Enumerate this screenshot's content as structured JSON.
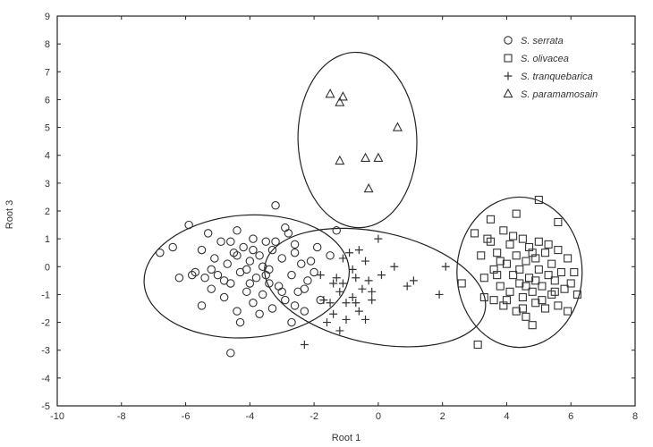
{
  "chart_data": {
    "type": "scatter",
    "xlabel": "Root 1",
    "ylabel": "Root 3",
    "xlim": [
      -10,
      8
    ],
    "ylim": [
      -5,
      9
    ],
    "xticks": [
      -10,
      -8,
      -6,
      -4,
      -2,
      0,
      2,
      4,
      6,
      8
    ],
    "yticks": [
      -5,
      -4,
      -3,
      -2,
      -1,
      0,
      1,
      2,
      3,
      4,
      5,
      6,
      7,
      8,
      9
    ],
    "grid": false,
    "legend_position": "top-right",
    "series": [
      {
        "name": "S. serrata",
        "marker": "circle",
        "points": [
          [
            -6.8,
            0.5
          ],
          [
            -6.4,
            0.7
          ],
          [
            -6.2,
            -0.4
          ],
          [
            -5.9,
            1.5
          ],
          [
            -5.7,
            -0.2
          ],
          [
            -5.5,
            0.6
          ],
          [
            -5.5,
            -1.4
          ],
          [
            -5.3,
            1.2
          ],
          [
            -5.2,
            -0.8
          ],
          [
            -5.1,
            0.3
          ],
          [
            -5.0,
            -0.3
          ],
          [
            -4.9,
            0.9
          ],
          [
            -4.8,
            -1.1
          ],
          [
            -4.7,
            0.1
          ],
          [
            -4.6,
            -0.6
          ],
          [
            -4.5,
            0.5
          ],
          [
            -4.4,
            -1.6
          ],
          [
            -4.4,
            1.3
          ],
          [
            -4.3,
            -0.2
          ],
          [
            -4.2,
            0.7
          ],
          [
            -4.1,
            -0.9
          ],
          [
            -4.0,
            0.2
          ],
          [
            -3.9,
            -1.3
          ],
          [
            -3.9,
            1.0
          ],
          [
            -3.8,
            -0.4
          ],
          [
            -3.7,
            0.4
          ],
          [
            -3.6,
            -1.0
          ],
          [
            -3.5,
            0.9
          ],
          [
            -3.4,
            -0.1
          ],
          [
            -3.3,
            -1.5
          ],
          [
            -3.3,
            0.6
          ],
          [
            -3.2,
            2.2
          ],
          [
            -3.1,
            -0.7
          ],
          [
            -3.0,
            0.3
          ],
          [
            -2.9,
            -1.2
          ],
          [
            -2.8,
            1.2
          ],
          [
            -2.7,
            -0.3
          ],
          [
            -2.7,
            -2.0
          ],
          [
            -2.6,
            0.8
          ],
          [
            -2.5,
            -0.9
          ],
          [
            -2.4,
            0.1
          ],
          [
            -2.3,
            -1.6
          ],
          [
            -2.2,
            -0.5
          ],
          [
            -1.9,
            0.7
          ],
          [
            -1.5,
            0.4
          ],
          [
            -4.6,
            -3.1
          ],
          [
            -4.3,
            -2.0
          ],
          [
            -3.7,
            -1.7
          ],
          [
            -5.2,
            -0.1
          ],
          [
            -4.0,
            -0.6
          ],
          [
            -3.6,
            0.0
          ],
          [
            -2.9,
            1.4
          ],
          [
            -2.0,
            -0.2
          ],
          [
            -2.6,
            -1.4
          ],
          [
            -1.8,
            -1.2
          ],
          [
            -1.3,
            1.3
          ],
          [
            -2.1,
            0.2
          ],
          [
            -3.0,
            -0.9
          ],
          [
            -4.4,
            0.4
          ],
          [
            -5.4,
            -0.4
          ],
          [
            -4.1,
            -0.1
          ],
          [
            -3.4,
            -0.6
          ],
          [
            -4.8,
            -0.5
          ],
          [
            -3.5,
            -0.3
          ],
          [
            -2.6,
            0.5
          ],
          [
            -3.9,
            0.6
          ],
          [
            -4.6,
            0.9
          ],
          [
            -3.2,
            0.9
          ],
          [
            -2.3,
            -0.8
          ],
          [
            -5.8,
            -0.3
          ]
        ]
      },
      {
        "name": "S. olivacea",
        "marker": "square",
        "points": [
          [
            3.1,
            -2.8
          ],
          [
            5.0,
            2.4
          ],
          [
            4.3,
            1.9
          ],
          [
            5.6,
            1.6
          ],
          [
            3.5,
            1.7
          ],
          [
            3.0,
            1.2
          ],
          [
            2.6,
            -0.6
          ],
          [
            3.2,
            0.4
          ],
          [
            3.3,
            -0.4
          ],
          [
            3.3,
            -1.1
          ],
          [
            3.5,
            0.9
          ],
          [
            3.6,
            -0.1
          ],
          [
            3.6,
            -1.2
          ],
          [
            3.7,
            0.5
          ],
          [
            3.8,
            -0.7
          ],
          [
            3.9,
            -1.4
          ],
          [
            3.9,
            1.3
          ],
          [
            4.0,
            0.1
          ],
          [
            4.1,
            -0.9
          ],
          [
            4.1,
            0.8
          ],
          [
            4.2,
            -0.3
          ],
          [
            4.3,
            -1.6
          ],
          [
            4.3,
            0.4
          ],
          [
            4.4,
            -0.6
          ],
          [
            4.5,
            1.0
          ],
          [
            4.5,
            -1.1
          ],
          [
            4.6,
            0.2
          ],
          [
            4.6,
            -1.8
          ],
          [
            4.7,
            -0.4
          ],
          [
            4.7,
            0.7
          ],
          [
            4.8,
            -2.1
          ],
          [
            4.8,
            -0.9
          ],
          [
            4.9,
            0.3
          ],
          [
            4.9,
            -1.3
          ],
          [
            5.0,
            -0.1
          ],
          [
            5.0,
            0.9
          ],
          [
            5.1,
            -0.7
          ],
          [
            5.2,
            0.5
          ],
          [
            5.2,
            -1.5
          ],
          [
            5.3,
            -0.3
          ],
          [
            5.4,
            0.1
          ],
          [
            5.4,
            -1.0
          ],
          [
            5.5,
            -0.5
          ],
          [
            5.6,
            0.6
          ],
          [
            5.6,
            -1.4
          ],
          [
            5.7,
            -0.2
          ],
          [
            5.8,
            -0.8
          ],
          [
            5.9,
            -1.6
          ],
          [
            5.9,
            0.3
          ],
          [
            6.0,
            -0.6
          ],
          [
            6.1,
            -0.2
          ],
          [
            6.2,
            -1.0
          ],
          [
            3.4,
            1.0
          ],
          [
            4.2,
            1.1
          ],
          [
            3.8,
            0.2
          ],
          [
            4.4,
            -0.1
          ],
          [
            4.0,
            -1.2
          ],
          [
            4.6,
            -0.7
          ],
          [
            5.3,
            0.8
          ],
          [
            5.1,
            -1.2
          ],
          [
            4.9,
            -0.5
          ],
          [
            4.5,
            -1.5
          ],
          [
            3.7,
            -0.3
          ],
          [
            4.8,
            0.5
          ],
          [
            5.5,
            -0.9
          ]
        ]
      },
      {
        "name": "S. tranquebarica",
        "marker": "plus",
        "points": [
          [
            -2.3,
            -2.8
          ],
          [
            -1.6,
            -2.0
          ],
          [
            -1.5,
            -1.3
          ],
          [
            -1.4,
            -1.7
          ],
          [
            -1.3,
            -0.4
          ],
          [
            -1.2,
            -0.9
          ],
          [
            -1.1,
            -0.6
          ],
          [
            -1.1,
            0.3
          ],
          [
            -1.0,
            -1.3
          ],
          [
            -1.0,
            -1.9
          ],
          [
            -0.9,
            0.5
          ],
          [
            -0.8,
            -0.1
          ],
          [
            -0.8,
            -1.1
          ],
          [
            -0.7,
            -0.4
          ],
          [
            -0.6,
            0.6
          ],
          [
            -0.6,
            -1.6
          ],
          [
            -0.5,
            -0.8
          ],
          [
            -0.4,
            -1.9
          ],
          [
            -0.4,
            0.2
          ],
          [
            -0.3,
            -0.5
          ],
          [
            -0.2,
            -1.2
          ],
          [
            0.0,
            1.0
          ],
          [
            0.1,
            -0.3
          ],
          [
            0.5,
            0.0
          ],
          [
            0.9,
            -0.7
          ],
          [
            1.1,
            -0.5
          ],
          [
            1.9,
            -1.0
          ],
          [
            2.1,
            0.0
          ],
          [
            -1.8,
            -0.3
          ],
          [
            -1.7,
            -1.2
          ],
          [
            -1.2,
            -2.3
          ],
          [
            -0.2,
            -0.9
          ],
          [
            -0.7,
            -1.3
          ],
          [
            -1.4,
            -0.6
          ]
        ]
      },
      {
        "name": "S. paramamosain",
        "marker": "triangle",
        "points": [
          [
            -1.5,
            6.2
          ],
          [
            -1.2,
            5.9
          ],
          [
            -1.1,
            6.1
          ],
          [
            0.6,
            5.0
          ],
          [
            -1.2,
            3.8
          ],
          [
            -0.4,
            3.9
          ],
          [
            0.0,
            3.9
          ],
          [
            -0.3,
            2.8
          ]
        ]
      }
    ],
    "ellipses": [
      {
        "group": "S. serrata",
        "cx": -4.1,
        "cy": -0.35,
        "rx": 3.2,
        "ry": 2.2,
        "angle_deg": -4
      },
      {
        "group": "S. olivacea",
        "cx": 4.4,
        "cy": -0.2,
        "rx": 1.95,
        "ry": 2.7,
        "angle_deg": 0
      },
      {
        "group": "S. tranquebarica",
        "cx": -0.1,
        "cy": -0.75,
        "rx": 3.5,
        "ry": 2.0,
        "angle_deg": 12
      },
      {
        "group": "S. paramamosain",
        "cx": -0.65,
        "cy": 4.55,
        "rx": 1.85,
        "ry": 3.15,
        "angle_deg": -2
      }
    ]
  }
}
